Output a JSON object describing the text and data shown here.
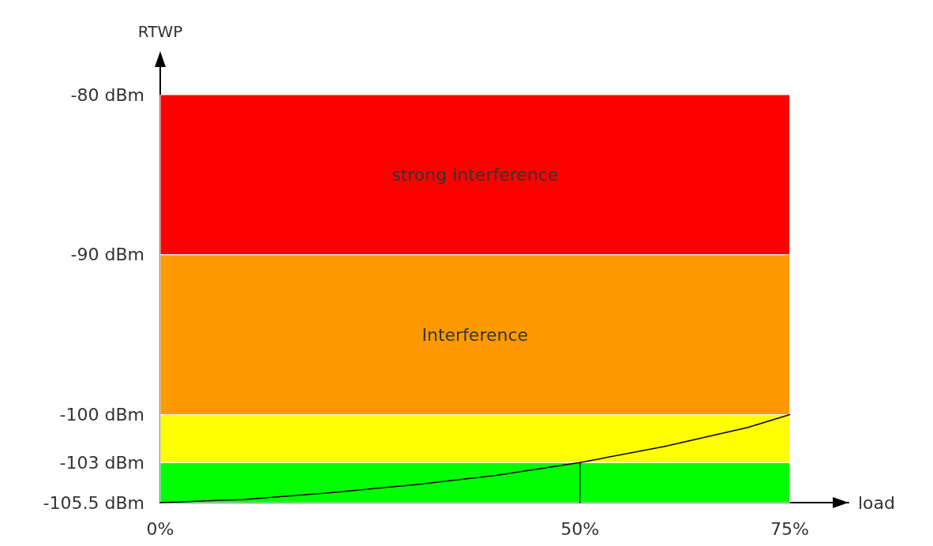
{
  "chart_data": {
    "type": "line",
    "xlabel": "load",
    "ylabel": "RTWP",
    "xlim": [
      0,
      82
    ],
    "xticks": [
      {
        "value": 0,
        "label": "0%"
      },
      {
        "value": 50,
        "label": "50%"
      },
      {
        "value": 75,
        "label": "75%"
      }
    ],
    "ylim": [
      -105.5,
      -80
    ],
    "yticks": [
      {
        "value": -105.5,
        "label": "-105.5 dBm"
      },
      {
        "value": -103,
        "label": "-103 dBm"
      },
      {
        "value": -100,
        "label": "-100 dBm"
      },
      {
        "value": -90,
        "label": "-90 dBm"
      },
      {
        "value": -80,
        "label": "-80 dBm"
      }
    ],
    "series": [
      {
        "color": "#000000",
        "line_style": "solid",
        "x": [
          0,
          10,
          20,
          30,
          40,
          50,
          60,
          70,
          75
        ],
        "values": [
          -105.5,
          -105.3,
          -104.9,
          -104.4,
          -103.8,
          -103,
          -102,
          -100.8,
          -100
        ]
      },
      {
        "color": "#000000",
        "line_style": "dotted",
        "x": [
          50,
          50
        ],
        "values": [
          -105.5,
          -103
        ]
      }
    ],
    "bands": [
      {
        "axis": "y",
        "from": -105.5,
        "to": -103,
        "label": null,
        "color": "#00ff00"
      },
      {
        "axis": "y",
        "from": -103,
        "to": -100,
        "label": null,
        "color": "#ffff00"
      },
      {
        "axis": "y",
        "from": -100,
        "to": -90,
        "label": "Interference",
        "color": "#ff9900"
      },
      {
        "axis": "y",
        "from": -90,
        "to": -80,
        "label": "strong interference",
        "color": "#ff0000"
      }
    ],
    "grid": false,
    "marker": "none"
  }
}
